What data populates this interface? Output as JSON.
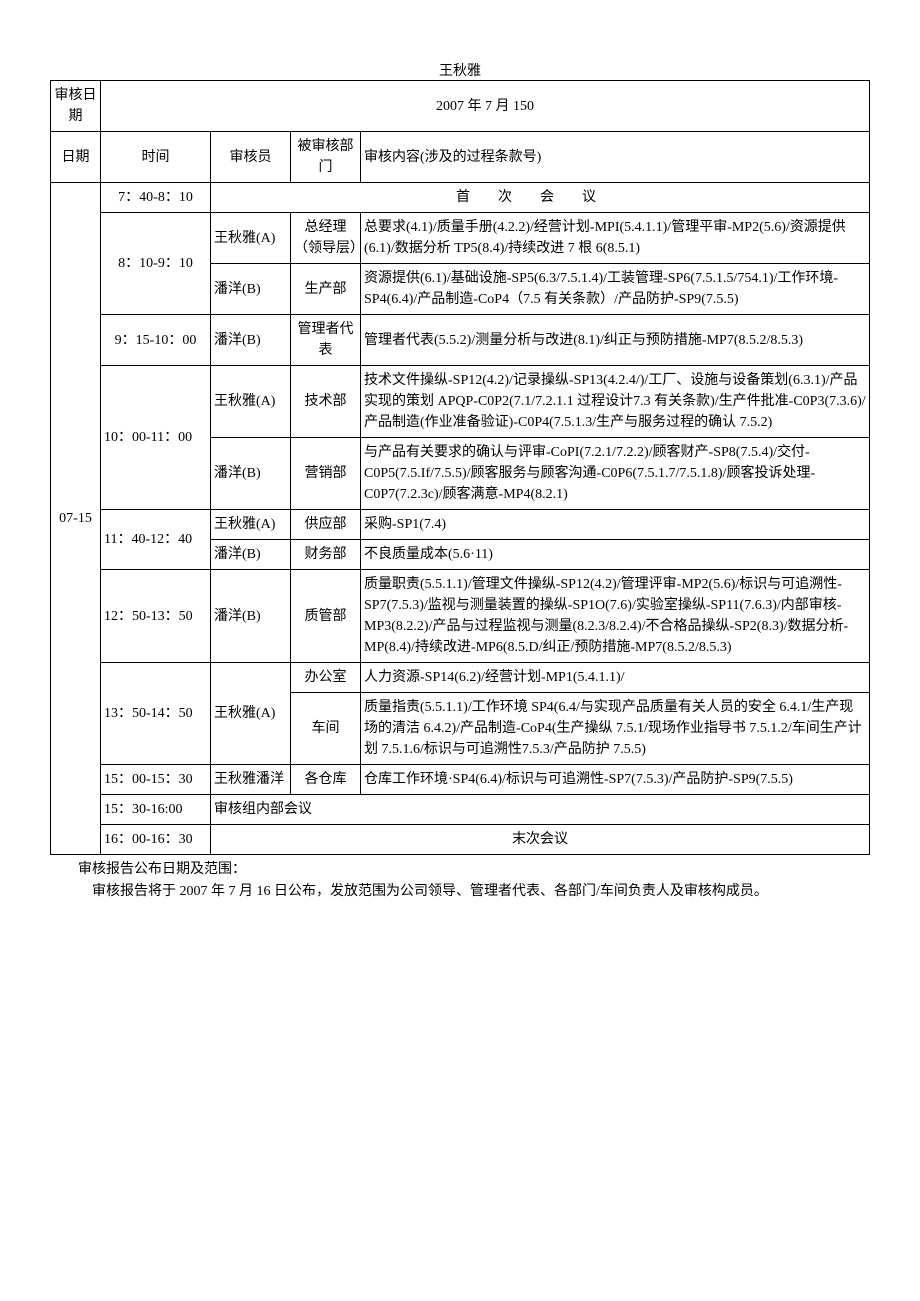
{
  "name_top": "王秋雅",
  "header": {
    "audit_date_label": "审核日期",
    "audit_date_value": "2007 年 7 月 150",
    "col_date": "日期",
    "col_time": "时间",
    "col_auditor": "审核员",
    "col_dept": "被审核部门",
    "col_content": "审核内容(涉及的过程条款号)"
  },
  "date_cell": "07-15",
  "rows": {
    "r1": {
      "time": "7：40-8：10",
      "content": "首次会议"
    },
    "r2": {
      "time": "8：10-9：10",
      "auditor": "王秋雅(A)",
      "dept": "总经理（领导层）",
      "content": "总要求(4.1)/质量手册(4.2.2)/经营计划-MPI(5.4.1.1)/管理平审-MP2(5.6)/资源提供(6.1)/数据分析 TP5(8.4)/持续改进 7 根 6(8.5.1)"
    },
    "r3": {
      "auditor": "潘洋(B)",
      "dept": "生产部",
      "content": "资源提供(6.1)/基础设施-SP5(6.3/7.5.1.4)/工装管理-SP6(7.5.1.5/754.1)/工作环境-SP4(6.4)/产品制造-CoP4（7.5 有关条款）/产品防护-SP9(7.5.5)"
    },
    "r4": {
      "time": "9：15-10：00",
      "auditor": "潘洋(B)",
      "dept": "管理者代表",
      "content": "管理者代表(5.5.2)/测量分析与改进(8.1)/纠正与预防措施-MP7(8.5.2/8.5.3)"
    },
    "r5": {
      "time": "10：00-11：00",
      "auditor": "王秋雅(A)",
      "dept": "技术部",
      "content": "技术文件操纵-SP12(4.2)/记录操纵-SP13(4.2.4/)/工厂、设施与设备策划(6.3.1)/产品实现的策划 APQP-C0P2(7.1/7.2.1.1 过程设计7.3 有关条款)/生产件批准-C0P3(7.3.6)/产品制造(作业准备验证)-C0P4(7.5.1.3/生产与服务过程的确认 7.5.2)"
    },
    "r6": {
      "auditor": "潘洋(B)",
      "dept": "营销部",
      "content": "与产品有关要求的确认与评审-CoPI(7.2.1/7.2.2)/顾客财产-SP8(7.5.4)/交付-C0P5(7.5.If/7.5.5)/顾客服务与顾客沟通-C0P6(7.5.1.7/7.5.1.8)/顾客投诉处理-C0P7(7.2.3c)/顾客满意-MP4(8.2.1)"
    },
    "r7": {
      "time": "11：40-12：40",
      "auditor": "王秋雅(A)",
      "dept": "供应部",
      "content": "采购-SP1(7.4)"
    },
    "r8": {
      "auditor": "潘洋(B)",
      "dept": "财务部",
      "content": "不良质量成本(5.6·11)"
    },
    "r9": {
      "time": "12：50-13：50",
      "auditor": "潘洋(B)",
      "dept": "质管部",
      "content": "质量职责(5.5.1.1)/管理文件操纵-SP12(4.2)/管理评审-MP2(5.6)/标识与可追溯性-SP7(7.5.3)/监视与测量装置的操纵-SP1O(7.6)/实验室操纵-SP11(7.6.3)/内部审核-MP3(8.2.2)/产品与过程监视与测量(8.2.3/8.2.4)/不合格品操纵-SP2(8.3)/数据分析-MP(8.4)/持续改进-MP6(8.5.D/纠正/预防措施-MP7(8.5.2/8.5.3)"
    },
    "r10": {
      "time": "13：50-14：50",
      "auditor": "王秋雅(A)",
      "dept": "办公室",
      "content": "人力资源-SP14(6.2)/经营计划-MP1(5.4.1.1)/"
    },
    "r11": {
      "auditor": "潘洋(B)",
      "dept": "车间",
      "content": "质量指责(5.5.1.1)/工作环境 SP4(6.4/与实现产品质量有关人员的安全 6.4.1/生产现场的清洁 6.4.2)/产品制造-CoP4(生产操纵 7.5.1/现场作业指导书 7.5.1.2/车间生产计划 7.5.1.6/标识与可追溯性7.5.3/产品防护 7.5.5)"
    },
    "r12": {
      "time": "15：00-15：30",
      "auditor": "王秋雅潘洋",
      "dept": "各仓库",
      "content": "仓库工作环境·SP4(6.4)/标识与可追溯性-SP7(7.5.3)/产品防护-SP9(7.5.5)"
    },
    "r13": {
      "time": "15：30-16:00",
      "content": "审核组内部会议"
    },
    "r14": {
      "time": "16：00-16：30",
      "content": "末次会议"
    }
  },
  "footer": {
    "line1": "审核报告公布日期及范围：",
    "line2": "审核报告将于 2007 年 7 月 16 日公布，发放范围为公司领导、管理者代表、各部门/车间负责人及审核构成员。"
  }
}
